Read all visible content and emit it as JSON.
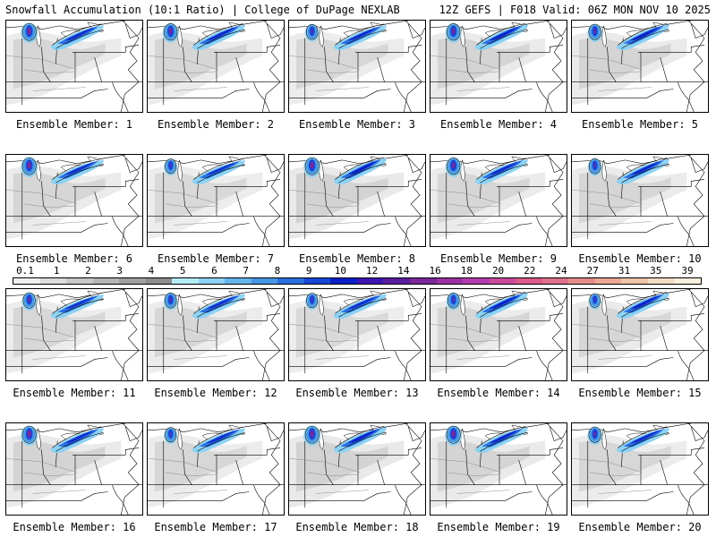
{
  "header": {
    "left": "Snowfall Accumulation (10:1 Ratio) | College of DuPage NEXLAB",
    "right": "12Z GEFS | F018 Valid: 06Z MON NOV 10 2025"
  },
  "panels": [
    {
      "label": "Ensemble Member: 1",
      "intensity": 0.6,
      "west": 0.9,
      "east": 0.7
    },
    {
      "label": "Ensemble Member: 2",
      "intensity": 0.7,
      "west": 0.8,
      "east": 0.8
    },
    {
      "label": "Ensemble Member: 3",
      "intensity": 0.5,
      "west": 0.5,
      "east": 0.7
    },
    {
      "label": "Ensemble Member: 4",
      "intensity": 0.8,
      "west": 0.8,
      "east": 0.9
    },
    {
      "label": "Ensemble Member: 5",
      "intensity": 0.8,
      "west": 0.6,
      "east": 0.9
    },
    {
      "label": "Ensemble Member: 6",
      "intensity": 0.7,
      "west": 0.9,
      "east": 0.6
    },
    {
      "label": "Ensemble Member: 7",
      "intensity": 0.4,
      "west": 0.4,
      "east": 0.5
    },
    {
      "label": "Ensemble Member: 8",
      "intensity": 0.9,
      "west": 0.9,
      "east": 1.0
    },
    {
      "label": "Ensemble Member: 9",
      "intensity": 0.7,
      "west": 0.8,
      "east": 0.7
    },
    {
      "label": "Ensemble Member: 10",
      "intensity": 0.6,
      "west": 0.5,
      "east": 0.8
    },
    {
      "label": "Ensemble Member: 11",
      "intensity": 0.5,
      "west": 0.6,
      "east": 0.5
    },
    {
      "label": "Ensemble Member: 12",
      "intensity": 0.5,
      "west": 0.5,
      "east": 0.6
    },
    {
      "label": "Ensemble Member: 13",
      "intensity": 0.4,
      "west": 0.4,
      "east": 0.6
    },
    {
      "label": "Ensemble Member: 14",
      "intensity": 0.7,
      "west": 0.5,
      "east": 0.9
    },
    {
      "label": "Ensemble Member: 15",
      "intensity": 0.6,
      "west": 0.3,
      "east": 0.9
    },
    {
      "label": "Ensemble Member: 16",
      "intensity": 0.8,
      "west": 0.9,
      "east": 0.7
    },
    {
      "label": "Ensemble Member: 17",
      "intensity": 0.5,
      "west": 0.4,
      "east": 0.6
    },
    {
      "label": "Ensemble Member: 18",
      "intensity": 0.9,
      "west": 0.9,
      "east": 0.9
    },
    {
      "label": "Ensemble Member: 19",
      "intensity": 0.8,
      "west": 0.9,
      "east": 0.8
    },
    {
      "label": "Ensemble Member: 20",
      "intensity": 0.5,
      "west": 0.6,
      "east": 0.7
    }
  ],
  "legend": {
    "ticks": [
      "0.1",
      "1",
      "2",
      "3",
      "4",
      "5",
      "6",
      "7",
      "8",
      "9",
      "10",
      "12",
      "14",
      "16",
      "18",
      "20",
      "22",
      "24",
      "27",
      "31",
      "35",
      "39"
    ],
    "colors": [
      "#f0f0f0",
      "#dcdcdc",
      "#c8c8c8",
      "#b4b4b4",
      "#a0a0a0",
      "#8c8c8c",
      "#b4ecf6",
      "#8cd2f4",
      "#64b4ee",
      "#4696e6",
      "#2a6ee0",
      "#1446d8",
      "#0a1ec8",
      "#3c14b4",
      "#5a1ea0",
      "#7a289a",
      "#9a32a4",
      "#b43cb0",
      "#c84a9c",
      "#dc5a8c",
      "#e0708a",
      "#e68c8a",
      "#eaa894",
      "#f0c4a8",
      "#f4dcc4",
      "#f8eedc"
    ]
  }
}
